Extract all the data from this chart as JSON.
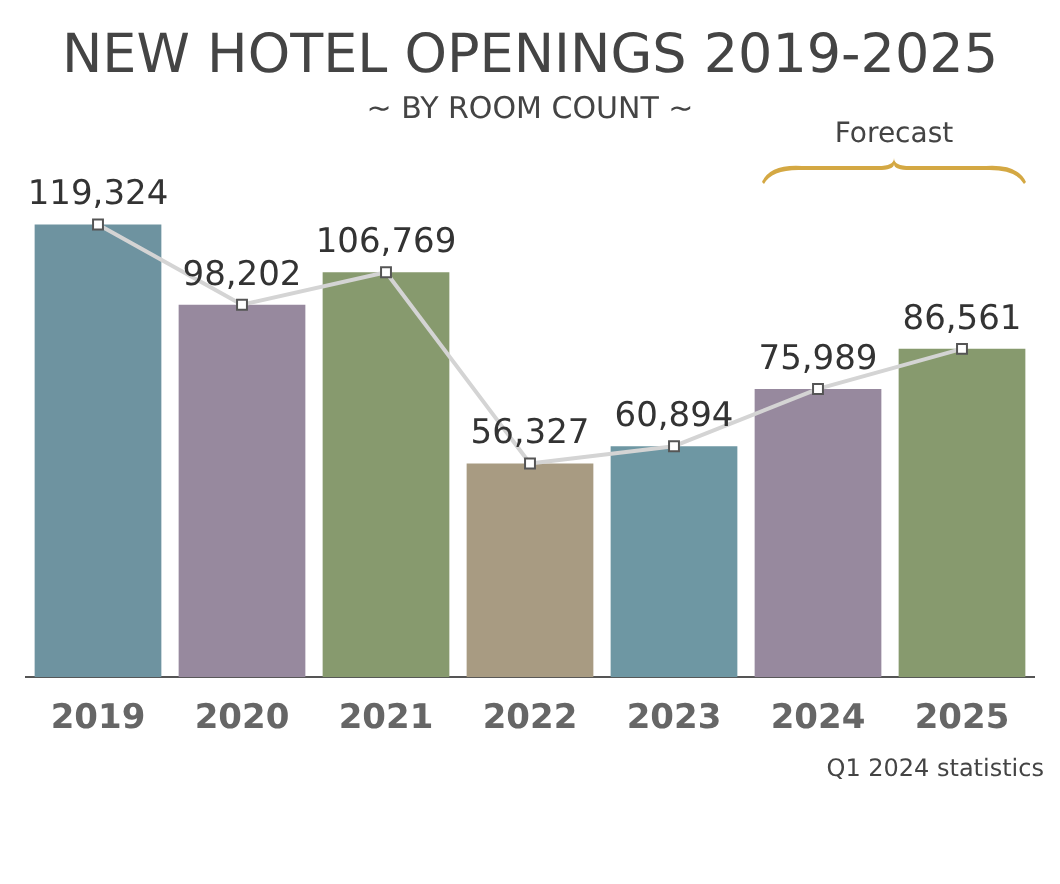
{
  "chart_data": {
    "type": "bar",
    "title": "NEW HOTEL OPENINGS 2019-2025",
    "subtitle": "~ BY ROOM COUNT ~",
    "categories": [
      "2019",
      "2020",
      "2021",
      "2022",
      "2023",
      "2024",
      "2025"
    ],
    "series": [
      {
        "colors": [
          "#6e93a0",
          "#97899e",
          "#879a6e",
          "#a89b82",
          "#6e97a3",
          "#97899e",
          "#879a6e"
        ],
        "values": [
          119324,
          98202,
          106769,
          56327,
          60894,
          75989,
          86561
        ],
        "value_labels": [
          "119,324",
          "98,202",
          "106,769",
          "56,327",
          "60,894",
          "75,989",
          "86,561"
        ]
      },
      {
        "type": "line",
        "color": "#d4d4d4",
        "marker": "square",
        "values": [
          119324,
          98202,
          106769,
          56327,
          60894,
          75989,
          86561
        ]
      }
    ],
    "grid": false,
    "legend": false,
    "annotations": [
      "Forecast",
      "Q1 2024 statistics"
    ]
  }
}
